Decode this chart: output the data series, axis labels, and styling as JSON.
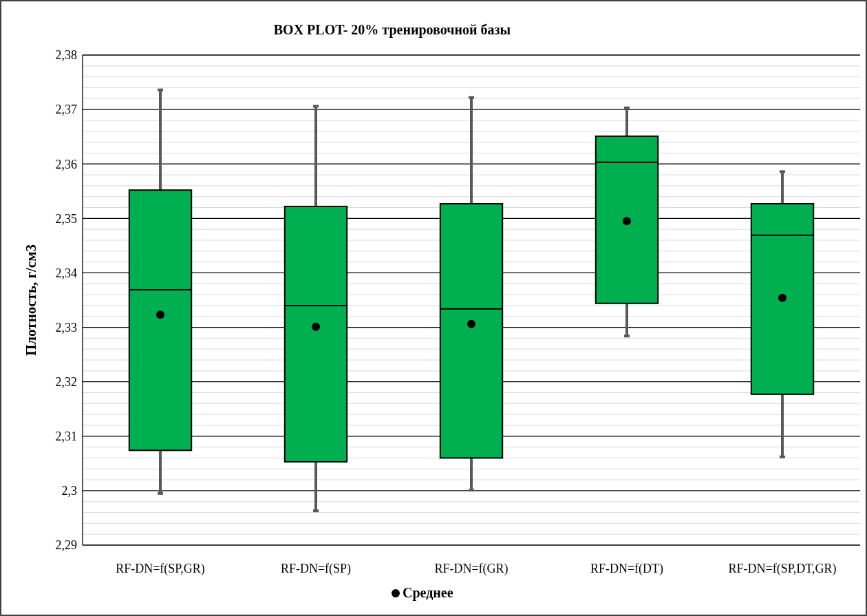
{
  "chart_data": {
    "type": "box",
    "title": "BOX PLOT- 20%  тренировочной базы",
    "ylabel": "Плотность, г/см3",
    "categories": [
      "RF-DN=f(SP,GR)",
      "RF-DN=f(SP)",
      "RF-DN=f(GR)",
      "RF-DN=f(DT)",
      "RF-DN=f(SP,DT,GR)"
    ],
    "series": [
      {
        "type": "box",
        "color": "#00b050",
        "boxes": [
          {
            "low": 2.2995,
            "q1": 2.3074,
            "median": 2.3369,
            "q3": 2.3552,
            "high": 2.3736
          },
          {
            "low": 2.2963,
            "q1": 2.3053,
            "median": 2.334,
            "q3": 2.3522,
            "high": 2.3706
          },
          {
            "low": 2.3001,
            "q1": 2.306,
            "median": 2.3334,
            "q3": 2.3527,
            "high": 2.3722
          },
          {
            "low": 2.3284,
            "q1": 2.3344,
            "median": 2.3603,
            "q3": 2.3651,
            "high": 2.3703
          },
          {
            "low": 2.3062,
            "q1": 2.3177,
            "median": 2.3469,
            "q3": 2.3527,
            "high": 2.3586
          }
        ]
      },
      {
        "type": "scatter",
        "name": "Среднее",
        "color": "#000000",
        "x": [
          "RF-DN=f(SP,GR)",
          "RF-DN=f(SP)",
          "RF-DN=f(GR)",
          "RF-DN=f(DT)",
          "RF-DN=f(SP,DT,GR)"
        ],
        "values": [
          2.3323,
          2.3301,
          2.3306,
          2.3495,
          2.3354
        ]
      }
    ],
    "ylim": [
      2.29,
      2.38
    ],
    "yticks": [
      {
        "value": 2.29,
        "label": "2,29"
      },
      {
        "value": 2.3,
        "label": "2,3"
      },
      {
        "value": 2.31,
        "label": "2,31"
      },
      {
        "value": 2.32,
        "label": "2,32"
      },
      {
        "value": 2.33,
        "label": "2,33"
      },
      {
        "value": 2.34,
        "label": "2,34"
      },
      {
        "value": 2.35,
        "label": "2,35"
      },
      {
        "value": 2.36,
        "label": "2,36"
      },
      {
        "value": 2.37,
        "label": "2,37"
      },
      {
        "value": 2.38,
        "label": "2,38"
      }
    ],
    "grid": true,
    "legend": "bottom",
    "marker": "circle"
  }
}
